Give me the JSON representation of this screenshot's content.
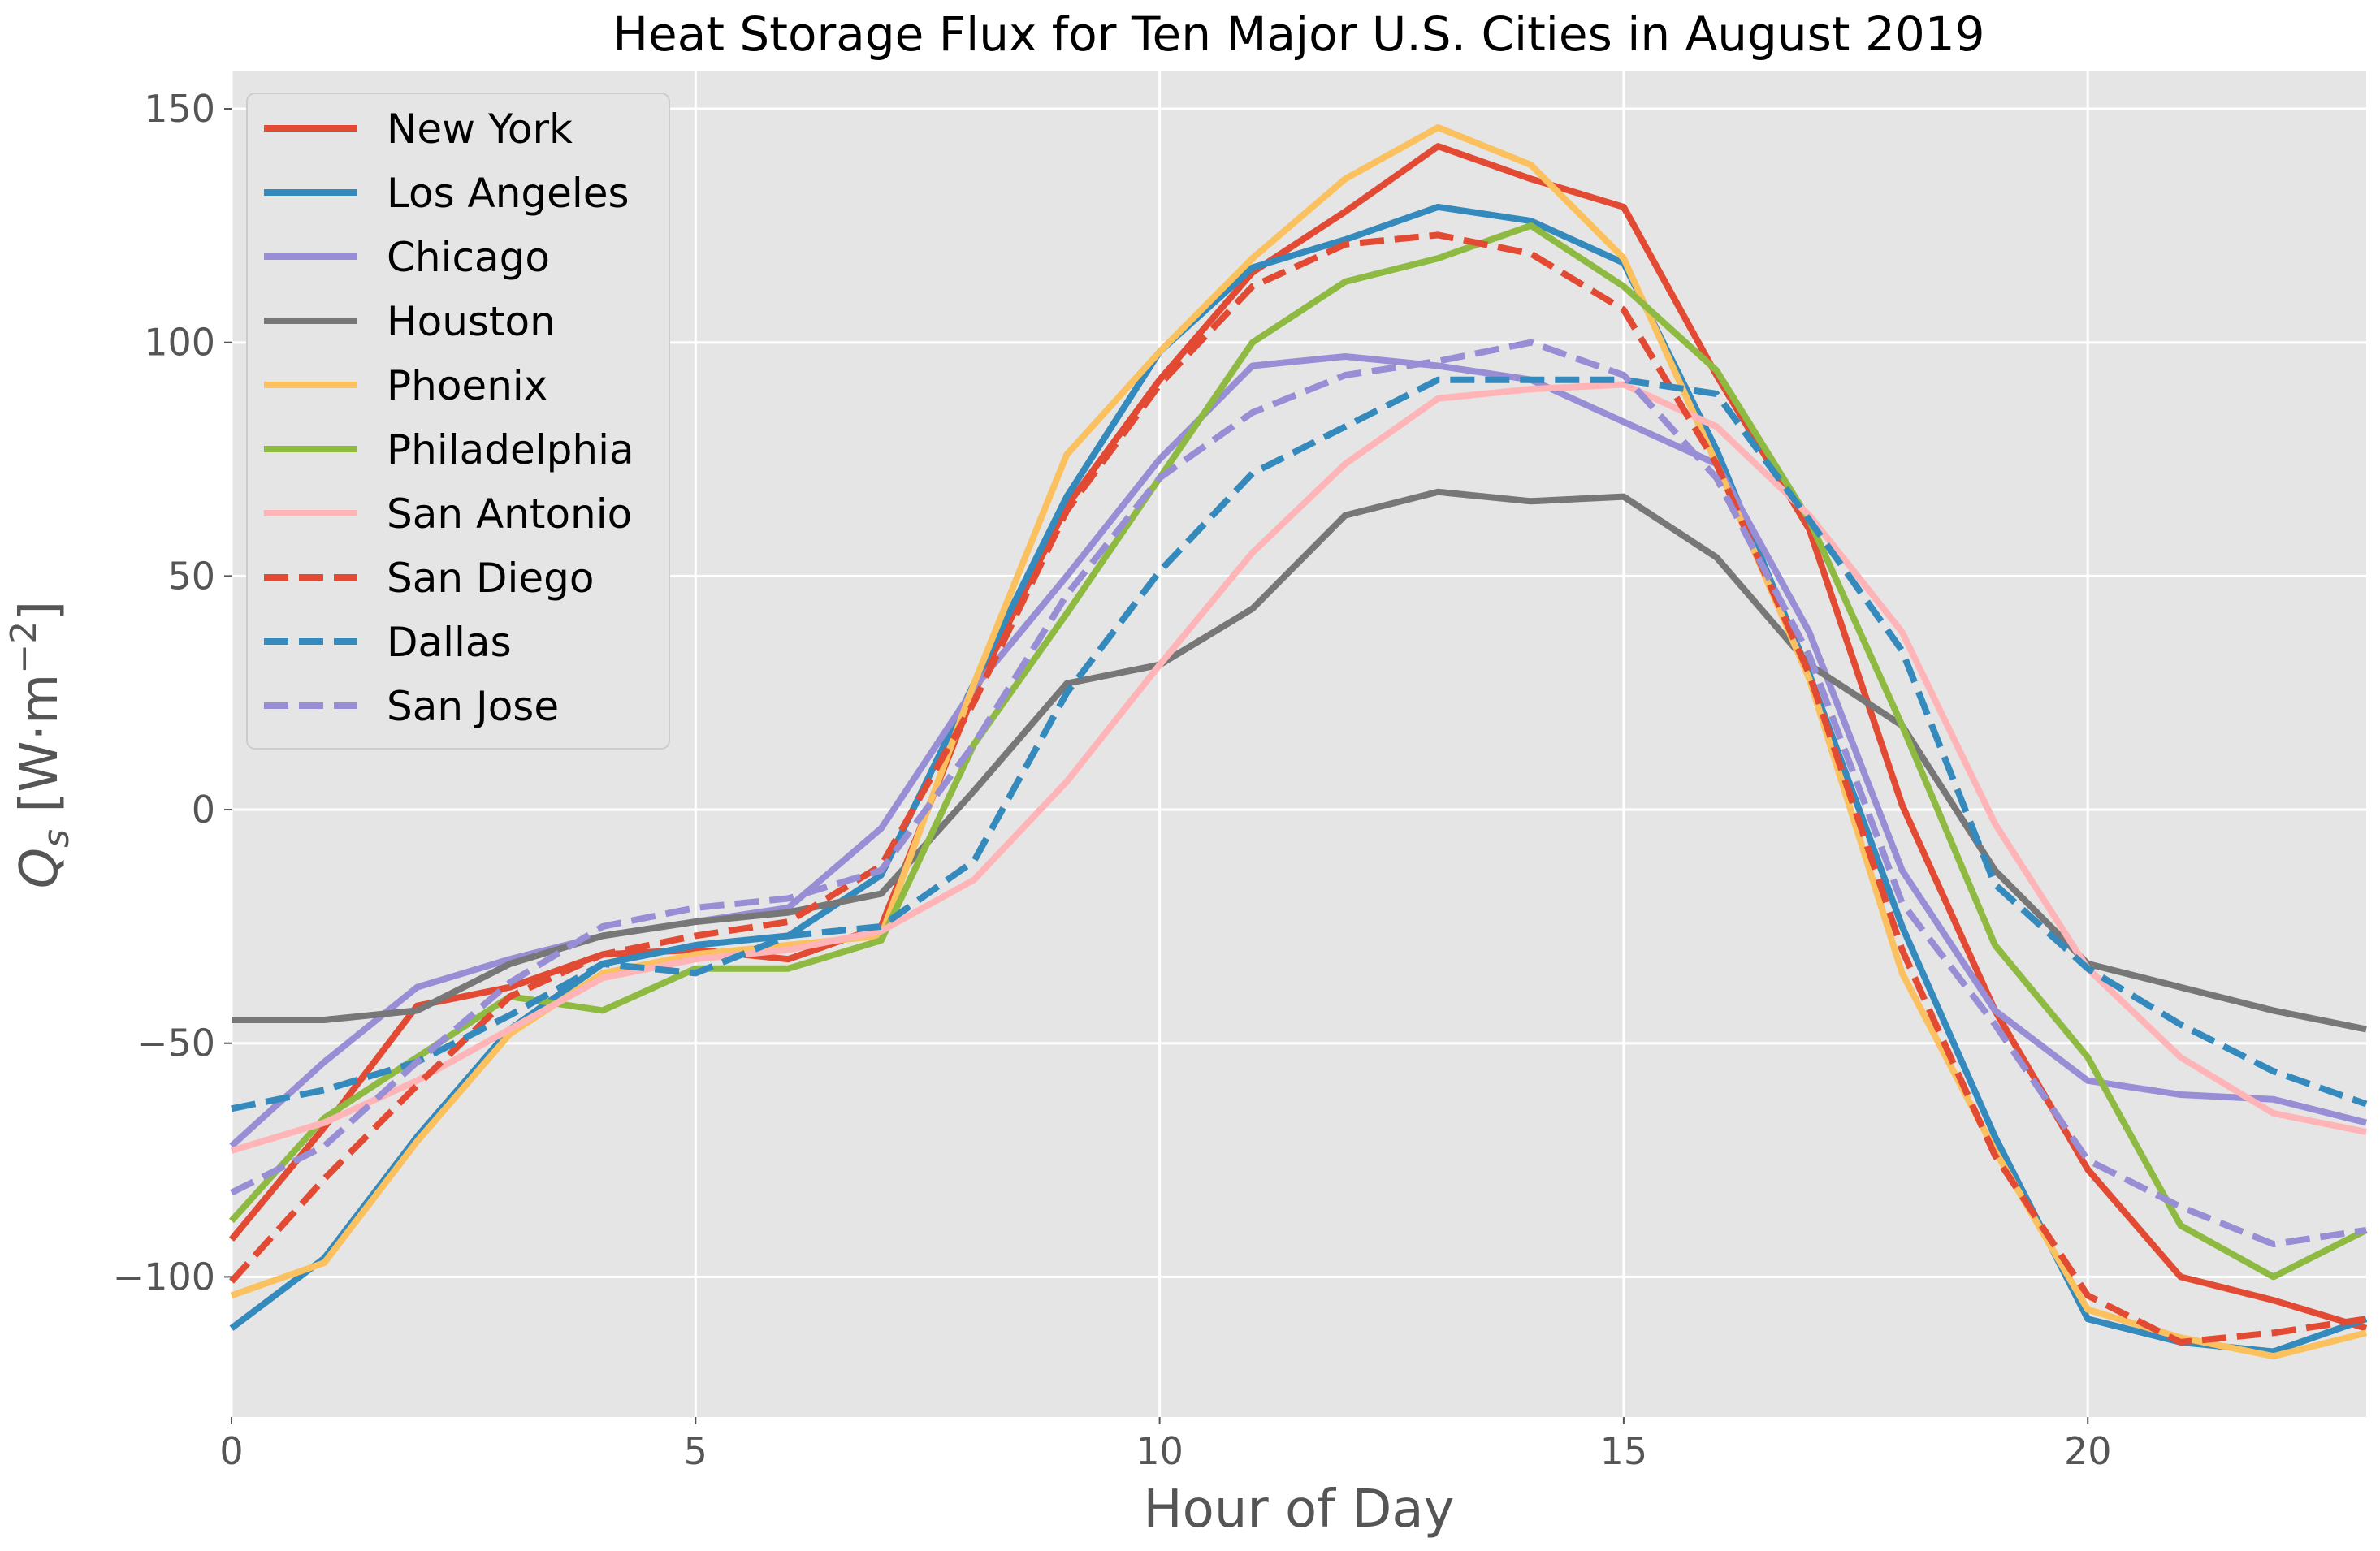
{
  "chart_data": {
    "type": "line",
    "title": "Heat Storage Flux for Ten Major U.S. Cities in August 2019",
    "xlabel": "Hour of Day",
    "ylabel": "Q_s [W·m^-2]",
    "ylabel_parts": {
      "q": "Q",
      "sub": "s",
      "units_open": " [W·m",
      "sup": "−2",
      "units_close": "]"
    },
    "xlim": [
      0,
      23
    ],
    "ylim": [
      -130,
      158
    ],
    "xticks": [
      0,
      5,
      10,
      15,
      20
    ],
    "yticks": [
      150,
      100,
      50,
      0,
      -50,
      -100
    ],
    "ytick_labels": [
      "150",
      "100",
      "50",
      "0",
      "−50",
      "−100"
    ],
    "grid": true,
    "legend_position": "top-left",
    "x": [
      0,
      1,
      2,
      3,
      4,
      5,
      6,
      7,
      8,
      9,
      10,
      11,
      12,
      13,
      14,
      15,
      16,
      17,
      18,
      19,
      20,
      21,
      22,
      23
    ],
    "series": [
      {
        "name": "New York",
        "color": "#E24A33",
        "dash": "solid",
        "values": [
          -92,
          -68,
          -42,
          -38,
          -31,
          -30,
          -32,
          -25,
          25,
          65,
          92,
          115,
          128,
          142,
          135,
          129,
          93,
          60,
          1,
          -43,
          -77,
          -100,
          -105,
          -111
        ]
      },
      {
        "name": "Los Angeles",
        "color": "#348ABD",
        "dash": "solid",
        "values": [
          -111,
          -96,
          -70,
          -47,
          -33,
          -29,
          -27,
          -14,
          27,
          67,
          98,
          116,
          122,
          129,
          126,
          117,
          77,
          29,
          -25,
          -70,
          -109,
          -114,
          -116,
          -109
        ]
      },
      {
        "name": "Chicago",
        "color": "#988ED5",
        "dash": "solid",
        "values": [
          -72,
          -54,
          -38,
          -32,
          -27,
          -24,
          -21,
          -4,
          26,
          50,
          75,
          95,
          97,
          95,
          92,
          83,
          74,
          38,
          -13,
          -43,
          -58,
          -61,
          -62,
          -67
        ]
      },
      {
        "name": "Houston",
        "color": "#777777",
        "dash": "solid",
        "values": [
          -45,
          -45,
          -43,
          -33,
          -27,
          -24,
          -22,
          -18,
          4,
          27,
          31,
          43,
          63,
          68,
          66,
          67,
          54,
          31,
          18,
          -13,
          -33,
          -38,
          -43,
          -47
        ]
      },
      {
        "name": "Phoenix",
        "color": "#FBC15E",
        "dash": "solid",
        "values": [
          -104,
          -97,
          -71,
          -48,
          -35,
          -31,
          -29,
          -27,
          27,
          76,
          98,
          118,
          135,
          146,
          138,
          118,
          74,
          28,
          -35,
          -73,
          -107,
          -113,
          -117,
          -112
        ]
      },
      {
        "name": "Philadelphia",
        "color": "#8EBA42",
        "dash": "solid",
        "values": [
          -88,
          -66,
          -53,
          -40,
          -43,
          -34,
          -34,
          -28,
          14,
          42,
          71,
          100,
          113,
          118,
          125,
          112,
          94,
          62,
          18,
          -29,
          -53,
          -89,
          -100,
          -90
        ]
      },
      {
        "name": "San Antonio",
        "color": "#FFB5B8",
        "dash": "solid",
        "values": [
          -73,
          -67,
          -58,
          -47,
          -36,
          -32,
          -30,
          -26,
          -15,
          6,
          31,
          55,
          74,
          88,
          90,
          91,
          82,
          63,
          38,
          -3,
          -34,
          -53,
          -65,
          -69
        ]
      },
      {
        "name": "San Diego",
        "color": "#E24A33",
        "dash": "dashed",
        "values": [
          -101,
          -79,
          -59,
          -40,
          -31,
          -27,
          -24,
          -12,
          23,
          64,
          91,
          112,
          121,
          123,
          119,
          107,
          74,
          29,
          -30,
          -74,
          -104,
          -114,
          -112,
          -109
        ]
      },
      {
        "name": "Dallas",
        "color": "#348ABD",
        "dash": "dashed",
        "values": [
          -64,
          -60,
          -54,
          -44,
          -33,
          -35,
          -27,
          -25,
          -11,
          25,
          51,
          72,
          82,
          92,
          92,
          92,
          89,
          62,
          34,
          -16,
          -34,
          -46,
          -56,
          -63
        ]
      },
      {
        "name": "San Jose",
        "color": "#988ED5",
        "dash": "dashed",
        "values": [
          -82,
          -72,
          -54,
          -37,
          -25,
          -21,
          -19,
          -13,
          14,
          46,
          71,
          85,
          93,
          96,
          100,
          93,
          71,
          33,
          -20,
          -46,
          -75,
          -85,
          -93,
          -90
        ]
      }
    ]
  }
}
